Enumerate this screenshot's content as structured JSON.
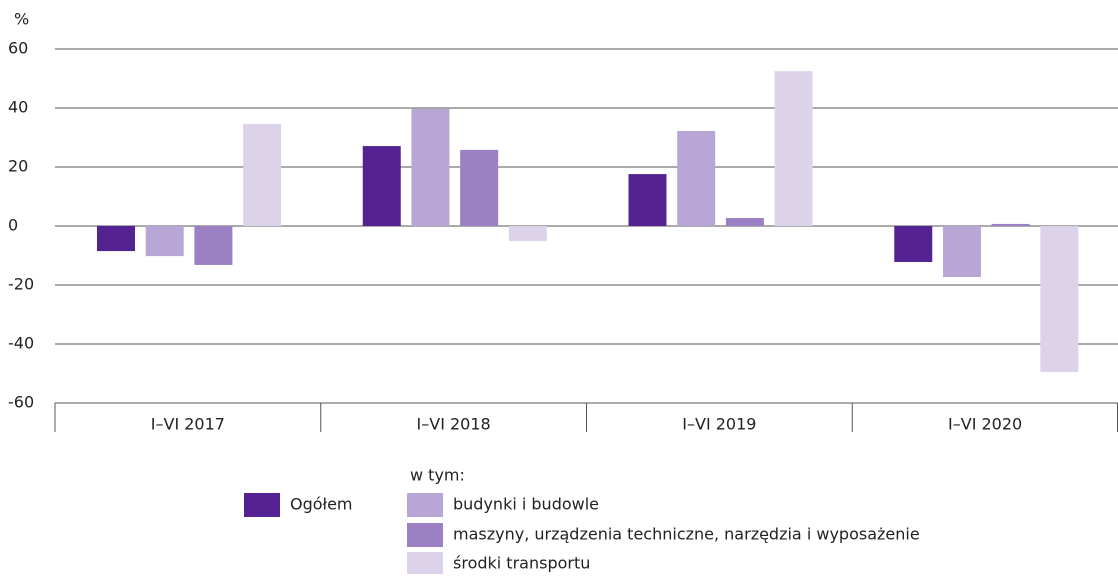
{
  "chart_data": {
    "type": "bar",
    "y_label": "%",
    "categories": [
      "I–VI 2017",
      "I–VI 2018",
      "I–VI 2019",
      "I–VI 2020"
    ],
    "series": [
      {
        "name": "Ogółem",
        "color": "#542391",
        "values": [
          -8.5,
          27.1,
          17.6,
          -12.2
        ]
      },
      {
        "name": "budynki i budowle",
        "color": "#b8a6d6",
        "values": [
          -10.2,
          39.7,
          32.2,
          -17.3
        ]
      },
      {
        "name": "maszyny, urządzenia techniczne, narzędzia i wyposażenie",
        "color": "#9b80c3",
        "values": [
          -13.2,
          25.8,
          2.7,
          0.7
        ]
      },
      {
        "name": "środki transportu",
        "color": "#dcd3ea",
        "values": [
          34.6,
          -5.1,
          52.5,
          -49.5
        ]
      }
    ],
    "legend_subtitle": "w tym:",
    "ylim": [
      -60,
      60
    ],
    "yticks": [
      -60,
      -40,
      -20,
      0,
      20,
      40,
      60
    ],
    "grid": true
  }
}
